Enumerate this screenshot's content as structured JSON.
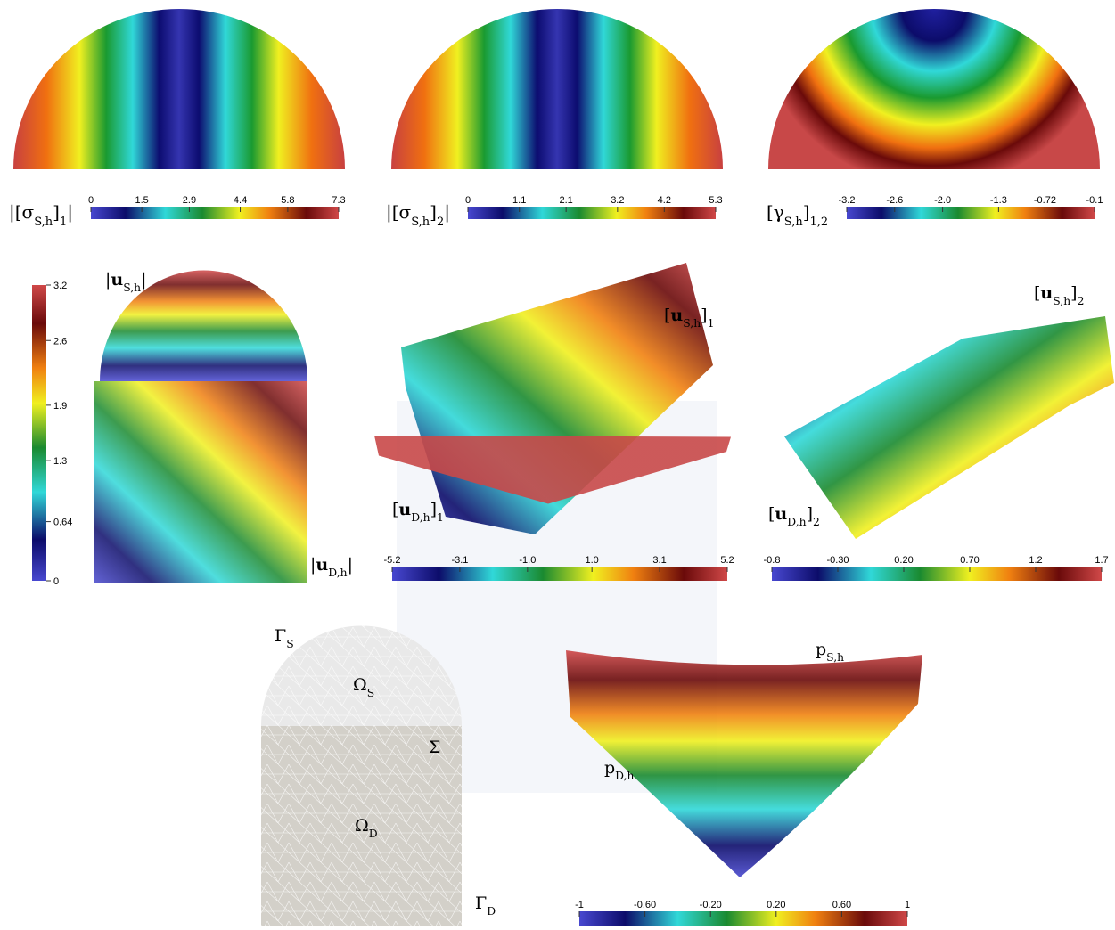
{
  "colorbars": [
    {
      "label": [
        {
          "text": "|[σ"
        },
        {
          "text": "S,h",
          "sub": true
        },
        {
          "text": "]"
        },
        {
          "text": "1",
          "sub": true
        },
        {
          "text": "|"
        }
      ],
      "range": [
        0,
        7.3
      ],
      "ticks": [
        0,
        1.5,
        2.9,
        4.4,
        5.8,
        7.3
      ]
    },
    {
      "label": [
        {
          "text": "|[σ"
        },
        {
          "text": "S,h",
          "sub": true
        },
        {
          "text": "]"
        },
        {
          "text": "2",
          "sub": true
        },
        {
          "text": "|"
        }
      ],
      "range": [
        0,
        5.3
      ],
      "ticks": [
        0,
        1.1,
        2.1,
        3.2,
        4.2,
        5.3
      ]
    },
    {
      "label": [
        {
          "text": "[γ"
        },
        {
          "text": "S,h",
          "sub": true
        },
        {
          "text": "]"
        },
        {
          "text": "1,2",
          "sub": true
        }
      ],
      "range": [
        -3.2,
        -0.1
      ],
      "ticks": [
        -3.2,
        -2.6,
        {
          "value": -2,
          "label": "-2.0"
        },
        -1.3,
        -0.72,
        -0.1
      ]
    },
    {
      "range": [
        0,
        3.2
      ],
      "ticks": [
        0,
        0.64,
        1.3,
        1.9,
        2.6,
        3.2
      ]
    },
    {
      "range": [
        -5.2,
        5.2
      ],
      "ticks": [
        -5.2,
        -3.1,
        {
          "value": -1,
          "label": "-1.0"
        },
        {
          "value": 1,
          "label": "1.0"
        },
        3.1,
        5.2
      ]
    },
    {
      "range": [
        -0.8,
        1.7
      ],
      "ticks": [
        -0.8,
        {
          "value": -0.3,
          "label": "-0.30"
        },
        {
          "value": 0.2,
          "label": "0.20"
        },
        {
          "value": 0.7,
          "label": "0.70"
        },
        1.2,
        1.7
      ]
    },
    {
      "range": [
        -1,
        1
      ],
      "ticks": [
        -1,
        {
          "value": -0.6,
          "label": "-0.60"
        },
        {
          "value": -0.2,
          "label": "-0.20"
        },
        {
          "value": 0.2,
          "label": "0.20"
        },
        {
          "value": 0.6,
          "label": "0.60"
        },
        1
      ]
    }
  ],
  "labels": [
    [
      {
        "text": "|"
      },
      {
        "text": "u",
        "bold": true
      },
      {
        "text": "S,h",
        "sub": true
      },
      {
        "text": "|"
      }
    ],
    [
      {
        "text": "|"
      },
      {
        "text": "u",
        "bold": true
      },
      {
        "text": "D,h",
        "sub": true
      },
      {
        "text": "|"
      }
    ],
    [
      {
        "text": "["
      },
      {
        "text": "u",
        "bold": true
      },
      {
        "text": "S,h",
        "sub": true
      },
      {
        "text": "]"
      },
      {
        "text": "1",
        "sub": true
      }
    ],
    [
      {
        "text": "["
      },
      {
        "text": "u",
        "bold": true
      },
      {
        "text": "D,h",
        "sub": true
      },
      {
        "text": "]"
      },
      {
        "text": "1",
        "sub": true
      }
    ],
    [
      {
        "text": "["
      },
      {
        "text": "u",
        "bold": true
      },
      {
        "text": "S,h",
        "sub": true
      },
      {
        "text": "]"
      },
      {
        "text": "2",
        "sub": true
      }
    ],
    [
      {
        "text": "["
      },
      {
        "text": "u",
        "bold": true
      },
      {
        "text": "D,h",
        "sub": true
      },
      {
        "text": "]"
      },
      {
        "text": "2",
        "sub": true
      }
    ],
    [
      {
        "text": "p"
      },
      {
        "text": "S,h",
        "sub": true
      }
    ],
    [
      {
        "text": "p"
      },
      {
        "text": "D,h",
        "sub": true
      }
    ],
    [
      {
        "text": "Γ"
      },
      {
        "text": "S",
        "sub": true
      }
    ],
    [
      {
        "text": "Ω"
      },
      {
        "text": "S",
        "sub": true
      }
    ],
    [
      {
        "text": "Σ"
      }
    ],
    [
      {
        "text": "Ω"
      },
      {
        "text": "D",
        "sub": true
      }
    ],
    [
      {
        "text": "Γ"
      },
      {
        "text": "D",
        "sub": true
      }
    ]
  ]
}
